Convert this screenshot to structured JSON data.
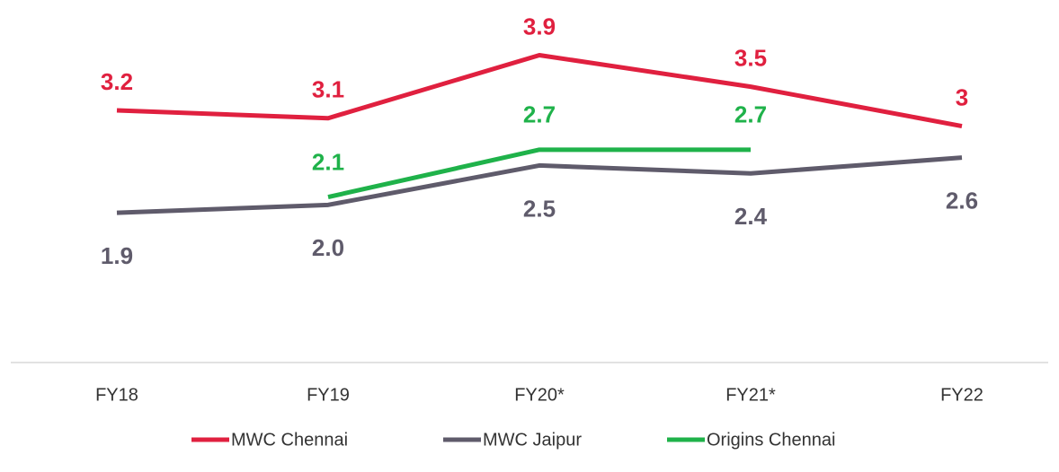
{
  "chart_data": {
    "type": "line",
    "categories": [
      "FY18",
      "FY19",
      "FY20*",
      "FY21*",
      "FY22"
    ],
    "ylim": [
      0,
      4.6
    ],
    "series": [
      {
        "name": "MWC Chennai",
        "color": "#e0203f",
        "values": [
          3.2,
          3.1,
          3.9,
          3.5,
          3
        ]
      },
      {
        "name": "MWC Jaipur",
        "color": "#5f5b6b",
        "values": [
          1.9,
          2.0,
          2.5,
          2.4,
          2.6
        ],
        "value_labels": [
          "1.9",
          "2.0",
          "2.5",
          "2.4",
          "2.6"
        ]
      },
      {
        "name": "Origins Chennai",
        "color": "#1fb24a",
        "values": [
          null,
          2.1,
          2.7,
          2.7,
          null
        ]
      }
    ],
    "legend": "bottom"
  }
}
